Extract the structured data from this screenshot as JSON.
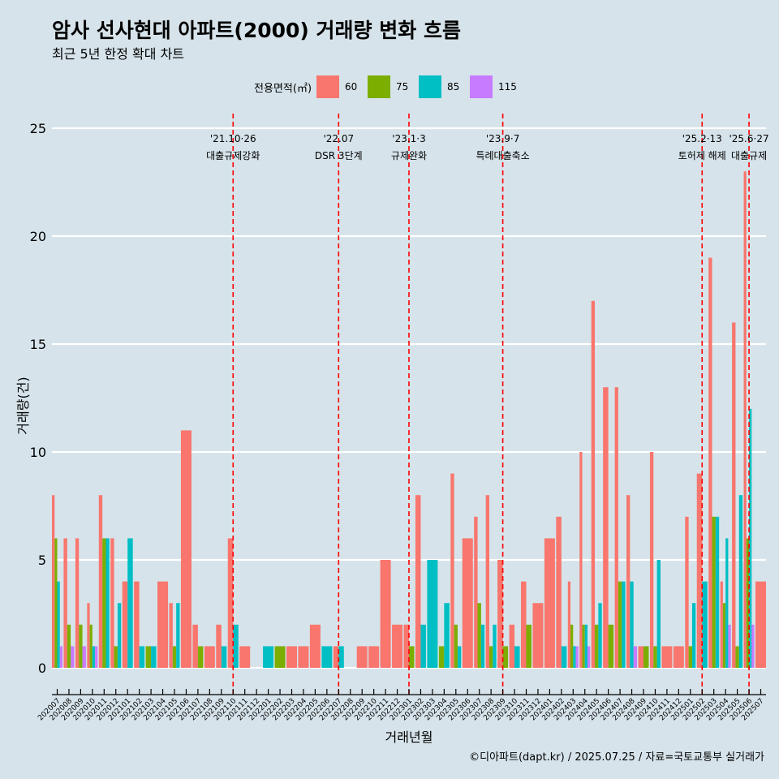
{
  "title": "암사 선사현대 아파트(2000) 거래량 변화 흐름",
  "subtitle": "최근 5년 한정 확대 차트",
  "caption": "©디아파트(dapt.kr) / 2025.07.25 / 자료=국토교통부 실거래가",
  "legend": {
    "title": "전용면적(㎡)"
  },
  "chart_data": {
    "type": "bar",
    "xlabel": "거래년월",
    "ylabel": "거래량(건)",
    "ylim": [
      0,
      25
    ],
    "yticks": [
      0,
      5,
      10,
      15,
      20,
      25
    ],
    "grid": true,
    "legend_position": "top",
    "categories": [
      "202007",
      "202008",
      "202009",
      "202010",
      "202011",
      "202012",
      "202101",
      "202102",
      "202103",
      "202104",
      "202105",
      "202106",
      "202107",
      "202108",
      "202109",
      "202110",
      "202111",
      "202112",
      "202201",
      "202202",
      "202203",
      "202204",
      "202205",
      "202206",
      "202207",
      "202208",
      "202209",
      "202210",
      "202211",
      "202212",
      "202301",
      "202302",
      "202303",
      "202304",
      "202305",
      "202306",
      "202307",
      "202308",
      "202309",
      "202310",
      "202311",
      "202312",
      "202401",
      "202402",
      "202403",
      "202404",
      "202405",
      "202406",
      "202407",
      "202408",
      "202409",
      "202410",
      "202411",
      "202412",
      "202501",
      "202502",
      "202503",
      "202504",
      "202505",
      "202506",
      "202507"
    ],
    "series": [
      {
        "name": "60",
        "color": "#F8766D",
        "values": [
          8,
          6,
          6,
          3,
          8,
          6,
          4,
          4,
          0,
          4,
          3,
          11,
          2,
          1,
          2,
          6,
          1,
          0,
          0,
          0,
          1,
          1,
          2,
          0,
          1,
          0,
          1,
          1,
          5,
          2,
          2,
          8,
          0,
          0,
          9,
          6,
          7,
          8,
          5,
          2,
          4,
          3,
          6,
          7,
          4,
          10,
          17,
          13,
          13,
          8,
          1,
          10,
          1,
          1,
          7,
          9,
          19,
          4,
          16,
          23,
          4
        ]
      },
      {
        "name": "75",
        "color": "#7CAE00",
        "values": [
          6,
          2,
          2,
          2,
          6,
          1,
          0,
          0,
          1,
          0,
          1,
          0,
          1,
          0,
          0,
          0,
          0,
          0,
          0,
          1,
          0,
          0,
          0,
          0,
          0,
          0,
          0,
          0,
          0,
          0,
          1,
          0,
          0,
          1,
          2,
          0,
          3,
          1,
          1,
          0,
          2,
          0,
          0,
          0,
          2,
          2,
          2,
          2,
          4,
          0,
          1,
          1,
          0,
          0,
          1,
          0,
          7,
          3,
          1,
          6,
          0
        ]
      },
      {
        "name": "85",
        "color": "#00BFC4",
        "values": [
          4,
          0,
          0,
          1,
          6,
          3,
          6,
          1,
          1,
          0,
          3,
          0,
          0,
          0,
          1,
          2,
          0,
          0,
          1,
          0,
          0,
          0,
          0,
          1,
          1,
          0,
          0,
          0,
          0,
          0,
          0,
          2,
          5,
          3,
          1,
          0,
          2,
          2,
          0,
          1,
          0,
          0,
          0,
          1,
          1,
          2,
          3,
          0,
          4,
          4,
          0,
          5,
          0,
          0,
          3,
          4,
          7,
          6,
          8,
          12,
          0
        ]
      },
      {
        "name": "115",
        "color": "#C77CFF",
        "values": [
          1,
          1,
          1,
          1,
          0,
          0,
          0,
          0,
          0,
          0,
          0,
          0,
          0,
          0,
          0,
          0,
          0,
          0,
          0,
          0,
          0,
          0,
          0,
          0,
          0,
          0,
          0,
          0,
          0,
          0,
          0,
          0,
          0,
          0,
          0,
          0,
          0,
          0,
          0,
          0,
          0,
          0,
          0,
          0,
          1,
          1,
          0,
          0,
          0,
          1,
          0,
          0,
          0,
          0,
          0,
          0,
          0,
          2,
          0,
          2,
          0
        ]
      }
    ],
    "annotations": [
      {
        "x": "202110",
        "date": "'21.10·26",
        "label": "대출규제강화"
      },
      {
        "x": "202207",
        "date": "'22.07",
        "label": "DSR 3단계"
      },
      {
        "x": "202301",
        "date": "'23.1·3",
        "label": "규제완화"
      },
      {
        "x": "202309",
        "date": "'23.9·7",
        "label": "특례대출축소"
      },
      {
        "x": "202502",
        "date": "'25.2·13",
        "label": "토허제 해제"
      },
      {
        "x": "202506",
        "date": "'25.6·27",
        "label": "대출규제"
      }
    ]
  }
}
